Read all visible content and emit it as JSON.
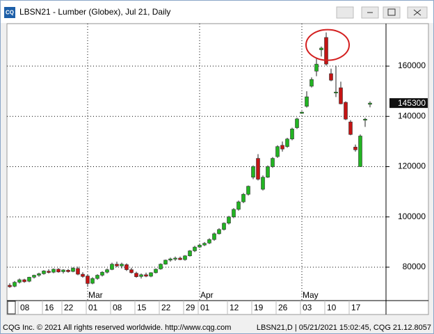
{
  "app_icon": "CQ",
  "footer": {
    "left": "CQG Inc. © 2021 All rights reserved worldwide. http://www.cqg.com",
    "right": "LBSN21,D | 05/21/2021 15:02:45, CQG 21.12.8057"
  },
  "chart_data": {
    "type": "candlestick",
    "title": "LBSN21 - Lumber (Globex), Jul 21, Daily",
    "categories": [
      "02-04",
      "02-05",
      "02-08",
      "02-09",
      "02-10",
      "02-11",
      "02-12",
      "02-16",
      "02-17",
      "02-18",
      "02-19",
      "02-22",
      "02-23",
      "02-24",
      "02-25",
      "02-26",
      "03-01",
      "03-02",
      "03-03",
      "03-04",
      "03-05",
      "03-08",
      "03-09",
      "03-10",
      "03-11",
      "03-12",
      "03-15",
      "03-16",
      "03-17",
      "03-18",
      "03-19",
      "03-22",
      "03-23",
      "03-24",
      "03-25",
      "03-26",
      "03-29",
      "03-30",
      "03-31",
      "04-01",
      "04-05",
      "04-06",
      "04-07",
      "04-08",
      "04-09",
      "04-12",
      "04-13",
      "04-14",
      "04-15",
      "04-16",
      "04-19",
      "04-20",
      "04-21",
      "04-22",
      "04-23",
      "04-26",
      "04-27",
      "04-28",
      "04-29",
      "04-30",
      "05-03",
      "05-04",
      "05-05",
      "05-06",
      "05-07",
      "05-10",
      "05-11",
      "05-12",
      "05-13",
      "05-14",
      "05-17",
      "05-18",
      "05-19",
      "05-20",
      "05-21"
    ],
    "open": [
      72800,
      72400,
      74000,
      75000,
      74400,
      76000,
      76800,
      77400,
      78400,
      78000,
      79200,
      78200,
      78800,
      78300,
      79500,
      77200,
      76500,
      73600,
      75500,
      76800,
      78000,
      79100,
      81200,
      80500,
      81000,
      79000,
      77600,
      76300,
      77000,
      76400,
      77800,
      79300,
      81200,
      82800,
      83300,
      83600,
      83000,
      84500,
      86500,
      88000,
      88800,
      89600,
      91000,
      93300,
      95000,
      97500,
      100000,
      103000,
      106000,
      109000,
      115800,
      123300,
      111000,
      115800,
      120000,
      124000,
      128500,
      128000,
      131000,
      135500,
      141200,
      144000,
      152000,
      158000,
      166500,
      171400,
      157000,
      149500,
      151400,
      145600,
      137800,
      127800,
      120000,
      138600,
      144800
    ],
    "high": [
      73600,
      74500,
      75500,
      75400,
      76200,
      77000,
      77800,
      78800,
      79200,
      79500,
      79600,
      79200,
      79300,
      80000,
      80200,
      78000,
      77000,
      76000,
      77200,
      78400,
      79500,
      81800,
      82200,
      81800,
      81500,
      79800,
      78200,
      77500,
      77800,
      78000,
      79500,
      81500,
      83000,
      83800,
      84200,
      84200,
      84800,
      86800,
      88500,
      89200,
      90000,
      91500,
      93800,
      95500,
      97800,
      100400,
      103500,
      106500,
      109500,
      112500,
      120500,
      125000,
      116500,
      120500,
      123800,
      128500,
      130000,
      131500,
      135500,
      139500,
      142000,
      150000,
      155500,
      163000,
      167800,
      173400,
      159000,
      160200,
      153800,
      146000,
      138500,
      128800,
      132800,
      139400,
      146000
    ],
    "low": [
      71800,
      72000,
      73500,
      73800,
      74000,
      75500,
      76200,
      77000,
      77500,
      77600,
      77800,
      77500,
      77800,
      78000,
      76800,
      75800,
      72200,
      73200,
      75000,
      76300,
      77500,
      78800,
      80000,
      79500,
      78500,
      77500,
      75800,
      75500,
      76000,
      76000,
      77500,
      79000,
      81000,
      82200,
      82500,
      82800,
      82600,
      84200,
      86000,
      87600,
      88400,
      89200,
      90500,
      93000,
      94600,
      97000,
      99500,
      102500,
      105500,
      108500,
      115000,
      114500,
      110500,
      115500,
      119500,
      123500,
      126000,
      127500,
      130500,
      135000,
      141000,
      143500,
      151500,
      156000,
      163800,
      160200,
      154000,
      147700,
      144800,
      138500,
      132500,
      126000,
      120000,
      135800,
      143600
    ],
    "close": [
      72200,
      74000,
      75000,
      74200,
      76000,
      76800,
      77400,
      78500,
      77900,
      79200,
      78100,
      78900,
      78200,
      79600,
      77200,
      76300,
      73500,
      75500,
      76800,
      78000,
      79000,
      81200,
      80500,
      81200,
      79000,
      77800,
      76200,
      77000,
      76400,
      77800,
      79200,
      81200,
      82800,
      83300,
      83600,
      83000,
      84500,
      86500,
      88000,
      88800,
      89500,
      91000,
      93300,
      95000,
      97500,
      100000,
      103000,
      106000,
      109000,
      112200,
      120000,
      115000,
      115800,
      120000,
      123300,
      128000,
      127000,
      131000,
      135000,
      139000,
      141700,
      147800,
      154700,
      160800,
      167200,
      160800,
      154400,
      149700,
      145000,
      138900,
      132800,
      126700,
      132200,
      138900,
      145300
    ],
    "up_color": "#22b422",
    "down_color": "#c41414",
    "last_price": 145300,
    "ylim": [
      66700,
      176900
    ],
    "yticks": [
      80000,
      100000,
      120000,
      140000,
      160000
    ],
    "xticks": [
      {
        "value": "02-08",
        "label": "08"
      },
      {
        "value": "02-16",
        "label": "16"
      },
      {
        "value": "02-22",
        "label": "22"
      },
      {
        "value": "03-01",
        "label": "01"
      },
      {
        "value": "03-08",
        "label": "08"
      },
      {
        "value": "03-15",
        "label": "15"
      },
      {
        "value": "03-22",
        "label": "22"
      },
      {
        "value": "03-29",
        "label": "29"
      },
      {
        "value": "04-01",
        "label": "01"
      },
      {
        "value": "04-12",
        "label": "12"
      },
      {
        "value": "04-19",
        "label": "19"
      },
      {
        "value": "04-26",
        "label": "26"
      },
      {
        "value": "05-03",
        "label": "03"
      },
      {
        "value": "05-10",
        "label": "10"
      },
      {
        "value": "05-17",
        "label": "17"
      }
    ],
    "month_ticks": [
      {
        "value": "03-01",
        "label": "Mar"
      },
      {
        "value": "04-01",
        "label": "Apr"
      },
      {
        "value": "05-03",
        "label": "May"
      }
    ],
    "grid": true
  }
}
